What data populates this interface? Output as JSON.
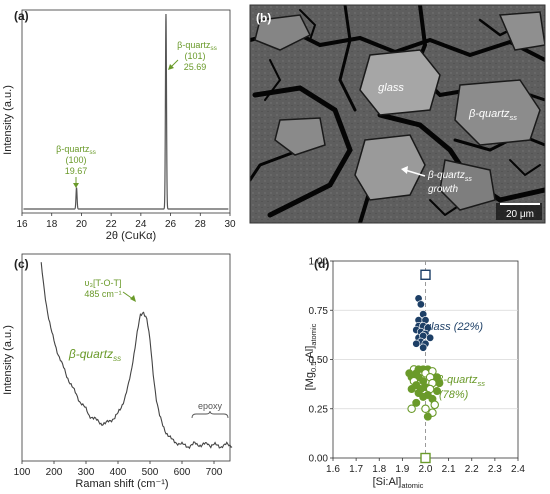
{
  "panels": {
    "a": {
      "label": "(a)"
    },
    "b": {
      "label": "(b)"
    },
    "c": {
      "label": "(c)"
    },
    "d": {
      "label": "(d)"
    }
  },
  "micrograph": {
    "glass_label": "glass",
    "quartz_label_main": "β-quartz",
    "quartz_label_sub": "ss",
    "growth_line1_main": "β-quartz",
    "growth_line1_sub": "ss",
    "growth_line2": "growth",
    "scalebar": "20 μm"
  },
  "chart_data": [
    {
      "panel": "a",
      "type": "line",
      "title": "",
      "xlabel": "2θ (CuKα)",
      "ylabel": "Intensity (a.u.)",
      "xlim": [
        16,
        30
      ],
      "xticks": [
        16,
        18,
        20,
        22,
        24,
        26,
        28,
        30
      ],
      "peaks": [
        {
          "label_main": "β-quartz",
          "label_sub": "ss",
          "hkl": "(100)",
          "position": 19.67,
          "position_label": "19.67",
          "relative_intensity": 0.11
        },
        {
          "label_main": "β-quartz",
          "label_sub": "ss",
          "hkl": "(101)",
          "position": 25.69,
          "position_label": "25.69",
          "relative_intensity": 1.0
        }
      ],
      "color": "#555555",
      "annotation_color": "#6a9a2a"
    },
    {
      "panel": "c",
      "type": "line",
      "title": "",
      "xlabel": "Raman shift (cm⁻¹)",
      "ylabel": "Intensity (a.u.)",
      "xlim": [
        100,
        750
      ],
      "xticks": [
        100,
        200,
        300,
        400,
        500,
        600,
        700
      ],
      "x": [
        160,
        170,
        180,
        190,
        200,
        210,
        220,
        230,
        240,
        250,
        260,
        270,
        280,
        290,
        300,
        310,
        320,
        330,
        340,
        350,
        360,
        370,
        380,
        390,
        400,
        410,
        420,
        430,
        440,
        450,
        460,
        470,
        480,
        490,
        500,
        510,
        520,
        530,
        540,
        550,
        560,
        570,
        580,
        590,
        600,
        610,
        620,
        630,
        640,
        650,
        660,
        670,
        680,
        690,
        700,
        710,
        720,
        730,
        740,
        750
      ],
      "y": [
        0.95,
        0.82,
        0.72,
        0.64,
        0.58,
        0.53,
        0.49,
        0.45,
        0.41,
        0.38,
        0.35,
        0.32,
        0.29,
        0.27,
        0.25,
        0.22,
        0.21,
        0.2,
        0.19,
        0.18,
        0.18,
        0.19,
        0.2,
        0.21,
        0.23,
        0.26,
        0.3,
        0.35,
        0.42,
        0.52,
        0.62,
        0.7,
        0.72,
        0.69,
        0.58,
        0.42,
        0.3,
        0.22,
        0.17,
        0.14,
        0.12,
        0.1,
        0.09,
        0.085,
        0.08,
        0.075,
        0.07,
        0.075,
        0.085,
        0.08,
        0.075,
        0.08,
        0.085,
        0.075,
        0.08,
        0.075,
        0.07,
        0.075,
        0.08,
        0.075
      ],
      "annotations": [
        {
          "text": "υ₃[T-O-T]",
          "value_label": "485 cm⁻¹"
        },
        {
          "text_main": "β-quartz",
          "text_sub": "ss"
        },
        {
          "text": "epoxy"
        }
      ],
      "color": "#444444",
      "annotation_color": "#6a9a2a"
    },
    {
      "panel": "d",
      "type": "scatter",
      "title": "",
      "xlabel_main": "[Si:Al]",
      "xlabel_sub": "atomic",
      "ylabel_main": "[Mg",
      "ylabel_sub1": "0.5",
      "ylabel_mid": ":Al]",
      "ylabel_sub2": "atomic",
      "xlim": [
        1.6,
        2.4
      ],
      "ylim": [
        0,
        1
      ],
      "xticks": [
        "1.6",
        "1.7",
        "1.8",
        "1.9",
        "2.0",
        "2.1",
        "2.2",
        "2.3",
        "2.4"
      ],
      "yticks": [
        "0.00",
        "0.25",
        "0.50",
        "0.75",
        "1.00"
      ],
      "reference_line_x": 2.0,
      "series": [
        {
          "name": "glass (22%)",
          "color": "#1d3f66",
          "marker": "filled-circle",
          "points": [
            [
              1.97,
              0.81
            ],
            [
              1.98,
              0.78
            ],
            [
              1.99,
              0.73
            ],
            [
              1.97,
              0.7
            ],
            [
              2.0,
              0.7
            ],
            [
              1.97,
              0.67
            ],
            [
              1.99,
              0.67
            ],
            [
              2.01,
              0.66
            ],
            [
              1.96,
              0.65
            ],
            [
              1.98,
              0.64
            ],
            [
              2.0,
              0.63
            ],
            [
              1.97,
              0.61
            ],
            [
              1.99,
              0.62
            ],
            [
              2.02,
              0.61
            ],
            [
              1.98,
              0.59
            ],
            [
              1.96,
              0.58
            ],
            [
              2.0,
              0.58
            ],
            [
              1.99,
              0.56
            ]
          ]
        },
        {
          "name": "β-quartz",
          "name_sub": "ss",
          "name_pct": "(78%)",
          "color": "#6a9a2a",
          "marker": "circle",
          "points": [
            [
              1.95,
              0.45
            ],
            [
              1.97,
              0.45
            ],
            [
              1.99,
              0.45
            ],
            [
              2.01,
              0.45
            ],
            [
              1.93,
              0.43
            ],
            [
              1.96,
              0.43
            ],
            [
              2.0,
              0.43
            ],
            [
              2.03,
              0.44
            ],
            [
              2.05,
              0.41
            ],
            [
              1.94,
              0.41
            ],
            [
              1.97,
              0.41
            ],
            [
              2.02,
              0.41
            ],
            [
              1.95,
              0.39
            ],
            [
              1.99,
              0.39
            ],
            [
              2.03,
              0.38
            ],
            [
              2.06,
              0.38
            ],
            [
              1.96,
              0.37
            ],
            [
              2.0,
              0.36
            ],
            [
              1.94,
              0.35
            ],
            [
              1.98,
              0.35
            ],
            [
              2.02,
              0.35
            ],
            [
              2.05,
              0.34
            ],
            [
              1.97,
              0.33
            ],
            [
              2.01,
              0.32
            ],
            [
              1.99,
              0.31
            ],
            [
              2.03,
              0.3
            ],
            [
              1.96,
              0.28
            ],
            [
              2.04,
              0.27
            ],
            [
              1.94,
              0.25
            ],
            [
              2.0,
              0.25
            ],
            [
              2.03,
              0.23
            ],
            [
              2.01,
              0.21
            ]
          ]
        },
        {
          "name": "glass nominal",
          "color": "#1d3f66",
          "marker": "open-square",
          "points": [
            [
              2.0,
              0.93
            ]
          ]
        },
        {
          "name": "β-quartz nominal",
          "color": "#6a9a2a",
          "marker": "open-square",
          "points": [
            [
              2.0,
              0.0
            ]
          ]
        }
      ]
    }
  ]
}
